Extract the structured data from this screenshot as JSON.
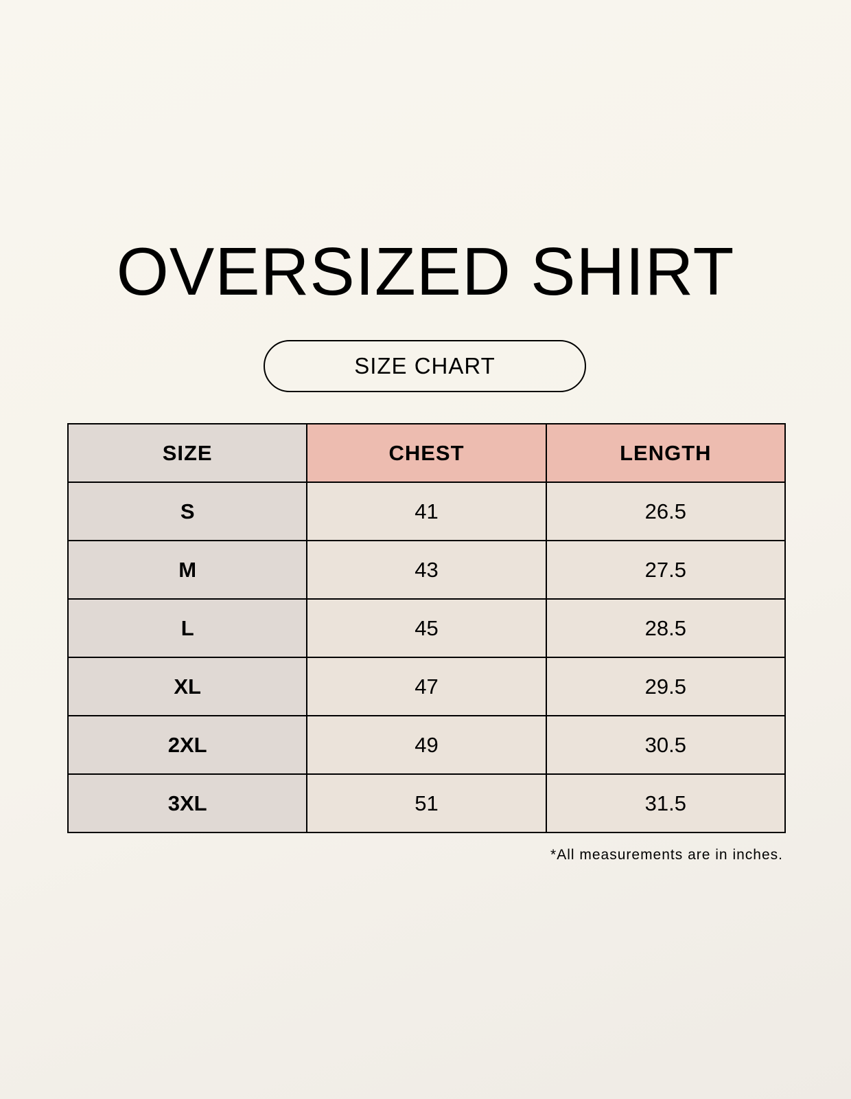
{
  "title": "OVERSIZED SHIRT",
  "subtitle": "SIZE CHART",
  "table": {
    "headers": [
      "SIZE",
      "CHEST",
      "LENGTH"
    ],
    "rows": [
      [
        "S",
        "41",
        "26.5"
      ],
      [
        "M",
        "43",
        "27.5"
      ],
      [
        "L",
        "45",
        "28.5"
      ],
      [
        "XL",
        "47",
        "29.5"
      ],
      [
        "2XL",
        "49",
        "30.5"
      ],
      [
        "3XL",
        "51",
        "31.5"
      ]
    ]
  },
  "footnote": "*All measurements are in inches.",
  "colors": {
    "size_column": "#e0d9d4",
    "measure_header": "#edbcb0",
    "measure_cells": "#ebe3da"
  }
}
